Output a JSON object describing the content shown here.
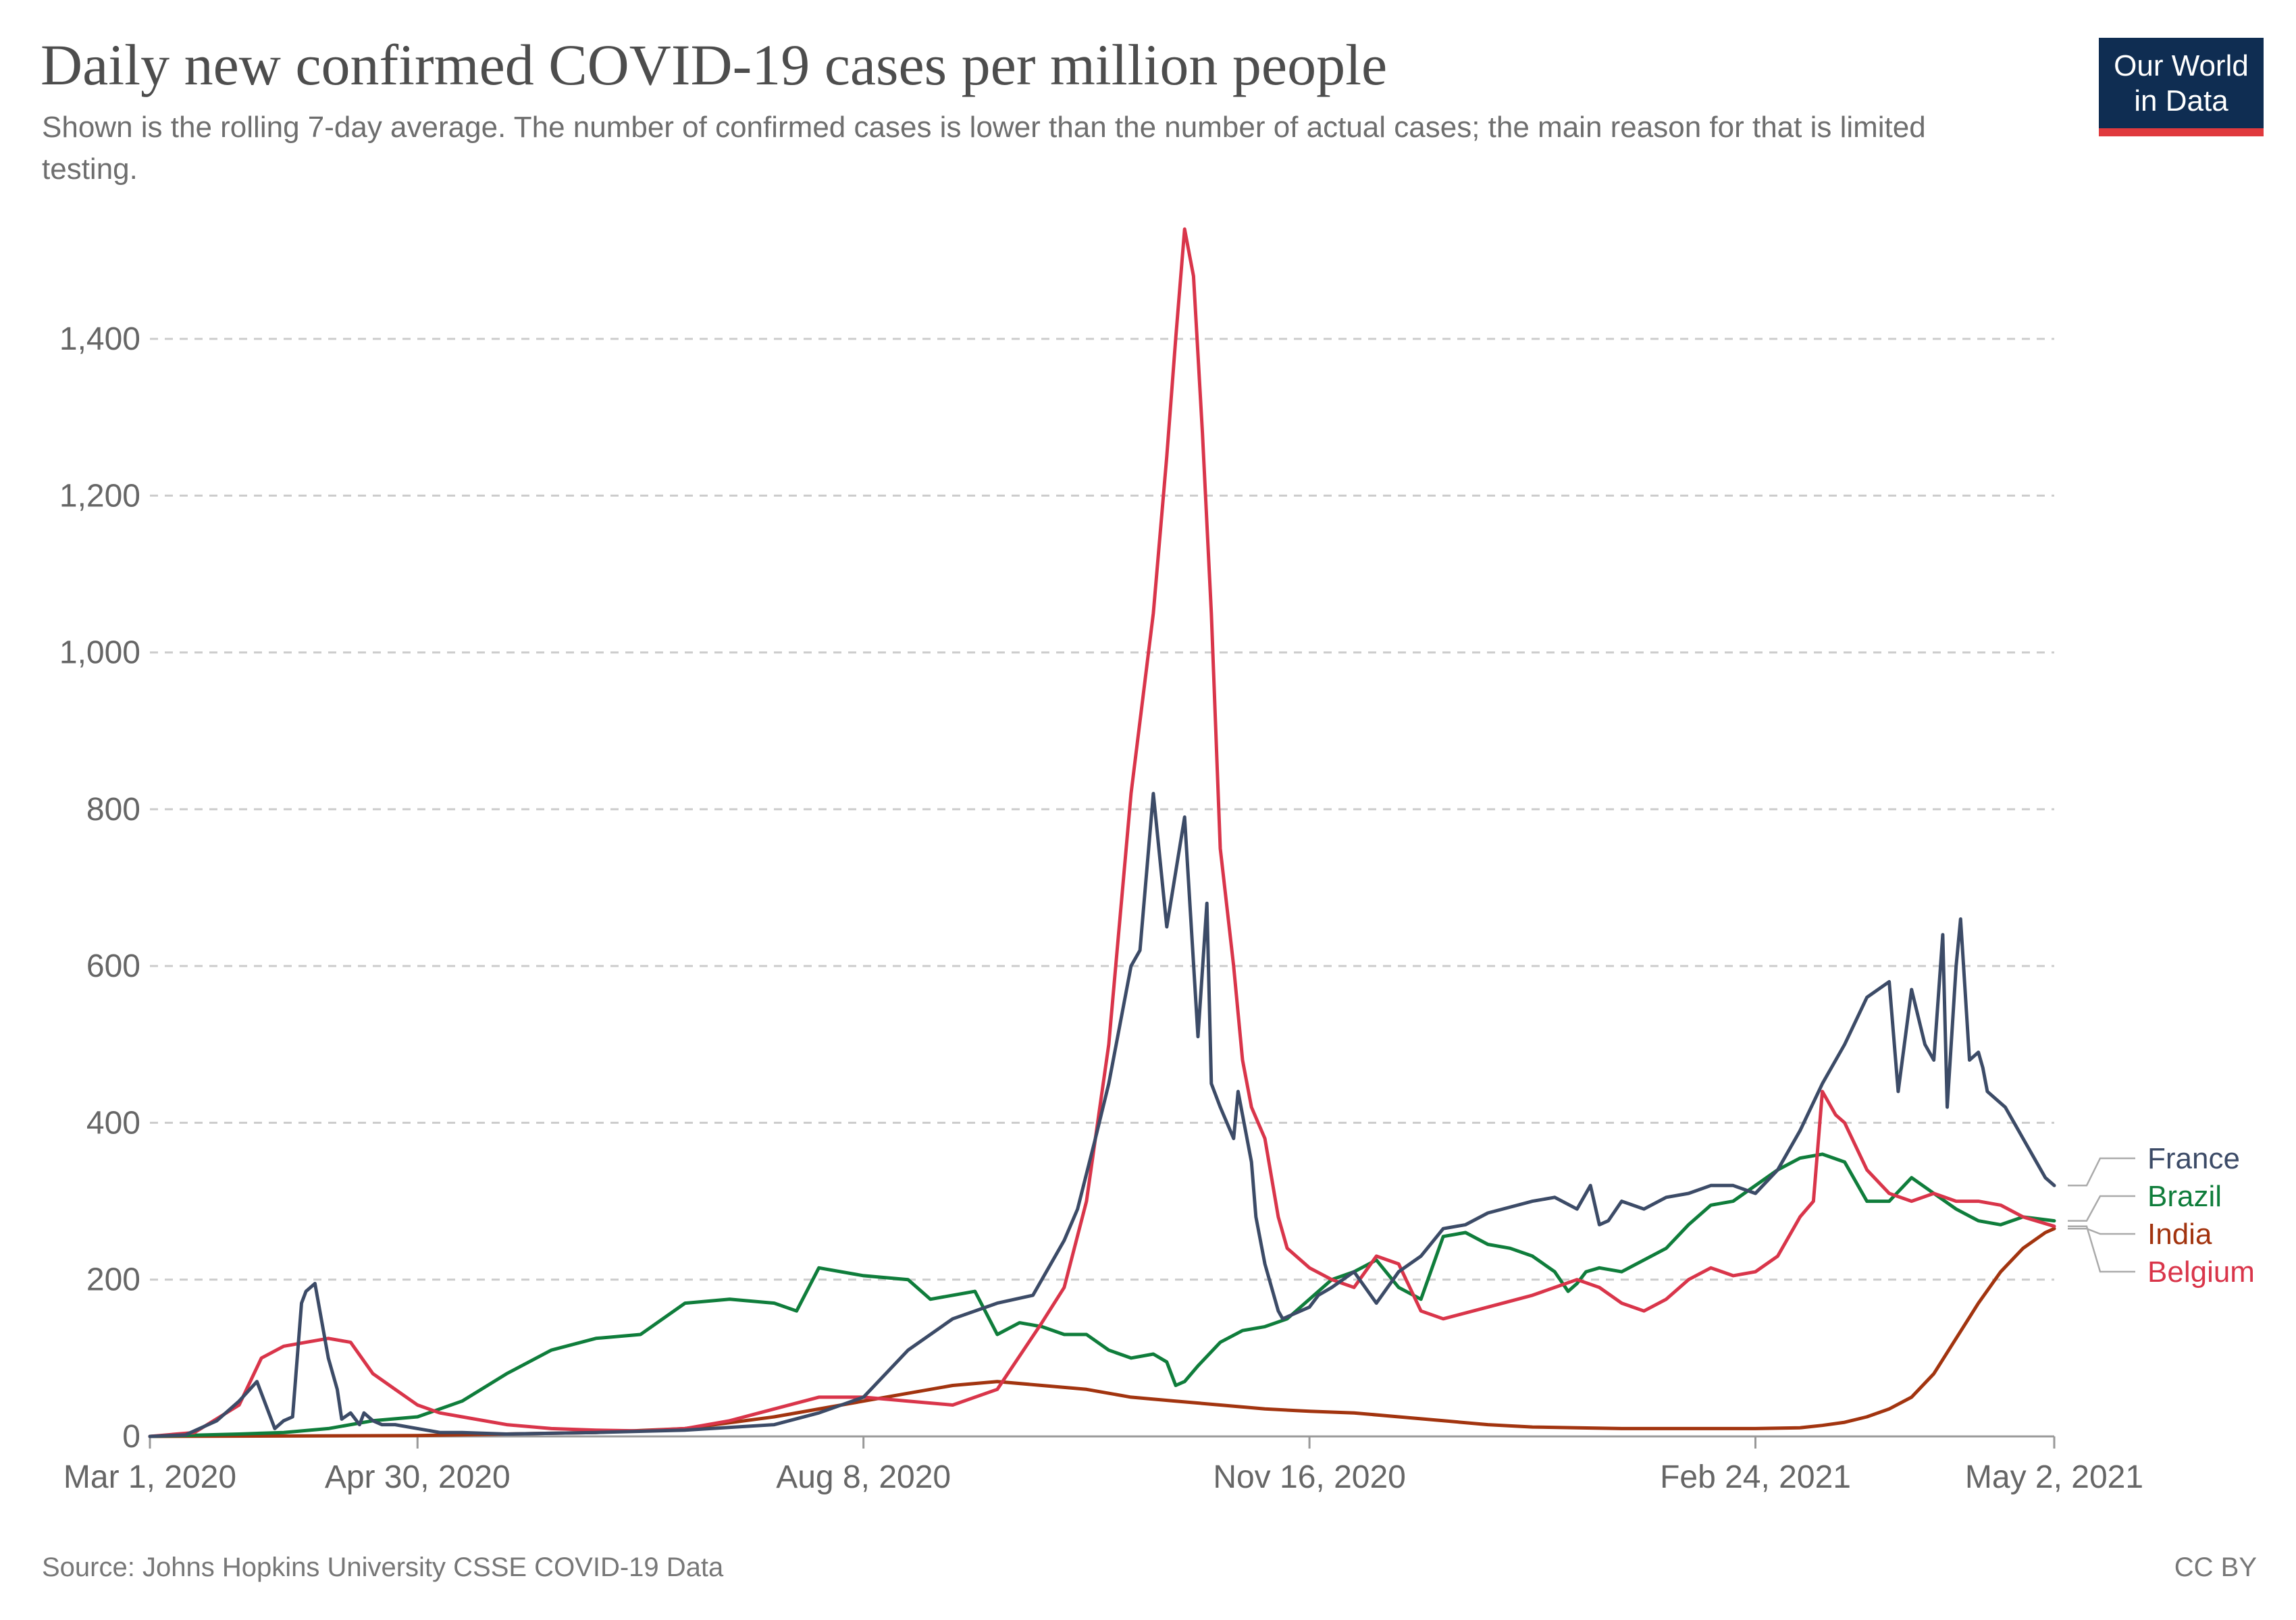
{
  "header": {
    "title": "Daily new confirmed COVID-19 cases per million people",
    "subtitle": "Shown is the rolling 7-day average. The number of confirmed cases is lower than the number of actual cases; the main reason for that is limited testing.",
    "logo_line1": "Our World",
    "logo_line2": "in Data"
  },
  "footer": {
    "source": "Source: Johns Hopkins University CSSE COVID-19 Data",
    "license": "CC BY"
  },
  "colors": {
    "France": "#3c4b67",
    "Brazil": "#0f7d3b",
    "India": "#a2340f",
    "Belgium": "#d9354a",
    "grid": "#cccccc"
  },
  "chart_data": {
    "type": "line",
    "title": "Daily new confirmed COVID-19 cases per million people",
    "xlabel": "",
    "ylabel": "",
    "x_unit": "days since Mar 1, 2020",
    "xlim": [
      0,
      427
    ],
    "ylim": [
      0,
      1550
    ],
    "y_ticks": [
      0,
      200,
      400,
      600,
      800,
      1000,
      1200,
      1400
    ],
    "y_tick_labels": [
      "0",
      "200",
      "400",
      "600",
      "800",
      "1,000",
      "1,200",
      "1,400"
    ],
    "x_ticks": [
      0,
      60,
      160,
      260,
      360,
      427
    ],
    "x_tick_labels": [
      "Mar 1, 2020",
      "Apr 30, 2020",
      "Aug 8, 2020",
      "Nov 16, 2020",
      "Feb 24, 2021",
      "May 2, 2021"
    ],
    "grid": "horizontal dashed",
    "legend": "right end labels",
    "series": [
      {
        "name": "France",
        "x": [
          0,
          8,
          15,
          20,
          24,
          28,
          30,
          32,
          34,
          35,
          37,
          40,
          42,
          43,
          45,
          47,
          48,
          50,
          52,
          55,
          60,
          65,
          70,
          80,
          100,
          120,
          140,
          150,
          160,
          170,
          180,
          190,
          198,
          205,
          208,
          212,
          215,
          220,
          222,
          225,
          228,
          232,
          235,
          237,
          238,
          240,
          243,
          244,
          245,
          247,
          248,
          250,
          252,
          253,
          254,
          256,
          258,
          260,
          262,
          265,
          270,
          275,
          280,
          285,
          290,
          295,
          300,
          310,
          315,
          320,
          323,
          325,
          327,
          330,
          335,
          340,
          345,
          350,
          355,
          360,
          365,
          370,
          375,
          380,
          385,
          390,
          392,
          395,
          398,
          400,
          402,
          403,
          405,
          406,
          408,
          410,
          411,
          412,
          414,
          416,
          418,
          420,
          423,
          425,
          427
        ],
        "values": [
          0,
          2,
          20,
          45,
          70,
          10,
          20,
          25,
          170,
          185,
          195,
          100,
          60,
          22,
          30,
          15,
          30,
          20,
          15,
          15,
          10,
          5,
          5,
          3,
          5,
          8,
          15,
          30,
          50,
          110,
          150,
          170,
          180,
          250,
          290,
          380,
          450,
          600,
          620,
          820,
          650,
          790,
          510,
          680,
          450,
          420,
          380,
          440,
          410,
          350,
          280,
          220,
          180,
          160,
          150,
          155,
          160,
          165,
          180,
          190,
          210,
          170,
          210,
          230,
          265,
          270,
          285,
          300,
          305,
          290,
          320,
          270,
          275,
          300,
          290,
          305,
          310,
          320,
          320,
          310,
          340,
          390,
          450,
          500,
          560,
          580,
          440,
          570,
          500,
          480,
          640,
          420,
          600,
          660,
          480,
          490,
          470,
          440,
          430,
          420,
          400,
          380,
          350,
          330,
          320
        ]
      },
      {
        "name": "Brazil",
        "x": [
          0,
          20,
          30,
          40,
          50,
          60,
          70,
          80,
          90,
          100,
          110,
          120,
          130,
          140,
          145,
          150,
          160,
          170,
          175,
          180,
          185,
          190,
          195,
          200,
          205,
          210,
          215,
          220,
          225,
          228,
          230,
          232,
          235,
          240,
          245,
          250,
          255,
          260,
          265,
          270,
          275,
          280,
          285,
          290,
          295,
          300,
          305,
          310,
          315,
          318,
          320,
          322,
          325,
          330,
          335,
          340,
          345,
          350,
          355,
          360,
          365,
          370,
          375,
          380,
          385,
          390,
          395,
          400,
          405,
          410,
          415,
          420,
          427
        ],
        "values": [
          0,
          3,
          5,
          10,
          20,
          25,
          45,
          80,
          110,
          125,
          130,
          170,
          175,
          170,
          160,
          215,
          205,
          200,
          175,
          180,
          185,
          130,
          145,
          140,
          130,
          130,
          110,
          100,
          105,
          95,
          65,
          70,
          90,
          120,
          135,
          140,
          150,
          175,
          200,
          210,
          225,
          190,
          175,
          255,
          260,
          245,
          240,
          230,
          210,
          185,
          195,
          210,
          215,
          210,
          225,
          240,
          270,
          295,
          300,
          320,
          340,
          355,
          360,
          350,
          300,
          300,
          330,
          310,
          290,
          275,
          270,
          280,
          275
        ]
      },
      {
        "name": "India",
        "x": [
          0,
          60,
          100,
          120,
          140,
          160,
          180,
          190,
          200,
          210,
          220,
          230,
          240,
          250,
          260,
          270,
          280,
          290,
          300,
          310,
          320,
          330,
          340,
          350,
          360,
          370,
          375,
          380,
          385,
          390,
          395,
          400,
          405,
          410,
          415,
          420,
          425,
          427
        ],
        "values": [
          0,
          1,
          5,
          10,
          25,
          45,
          65,
          70,
          65,
          60,
          50,
          45,
          40,
          35,
          32,
          30,
          25,
          20,
          15,
          12,
          11,
          10,
          10,
          10,
          10,
          11,
          14,
          18,
          25,
          35,
          50,
          80,
          125,
          170,
          210,
          240,
          260,
          265
        ]
      },
      {
        "name": "Belgium",
        "x": [
          0,
          10,
          20,
          25,
          30,
          35,
          40,
          45,
          50,
          55,
          60,
          65,
          70,
          80,
          90,
          100,
          110,
          120,
          130,
          140,
          150,
          160,
          170,
          180,
          190,
          200,
          205,
          210,
          215,
          220,
          225,
          228,
          230,
          232,
          234,
          236,
          238,
          240,
          243,
          245,
          247,
          250,
          253,
          255,
          260,
          265,
          270,
          275,
          280,
          285,
          290,
          300,
          310,
          320,
          325,
          330,
          335,
          340,
          345,
          350,
          355,
          360,
          365,
          370,
          373,
          375,
          378,
          380,
          385,
          390,
          395,
          400,
          405,
          410,
          415,
          420,
          427
        ],
        "values": [
          0,
          5,
          40,
          100,
          115,
          120,
          125,
          120,
          80,
          60,
          40,
          30,
          25,
          15,
          10,
          8,
          7,
          10,
          20,
          35,
          50,
          50,
          45,
          40,
          60,
          145,
          190,
          300,
          500,
          820,
          1050,
          1250,
          1400,
          1540,
          1480,
          1280,
          1050,
          750,
          600,
          480,
          420,
          380,
          280,
          240,
          215,
          200,
          190,
          230,
          220,
          160,
          150,
          165,
          180,
          200,
          190,
          170,
          160,
          175,
          200,
          215,
          205,
          210,
          230,
          280,
          300,
          440,
          410,
          400,
          340,
          310,
          300,
          310,
          300,
          300,
          295,
          280,
          268
        ]
      }
    ]
  }
}
